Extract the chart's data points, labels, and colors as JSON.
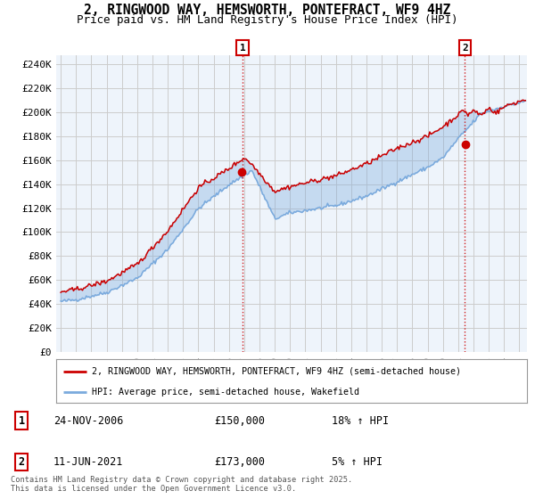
{
  "title": "2, RINGWOOD WAY, HEMSWORTH, PONTEFRACT, WF9 4HZ",
  "subtitle": "Price paid vs. HM Land Registry's House Price Index (HPI)",
  "ylabel_ticks": [
    "£0",
    "£20K",
    "£40K",
    "£60K",
    "£80K",
    "£100K",
    "£120K",
    "£140K",
    "£160K",
    "£180K",
    "£200K",
    "£220K",
    "£240K"
  ],
  "ytick_values": [
    0,
    20000,
    40000,
    60000,
    80000,
    100000,
    120000,
    140000,
    160000,
    180000,
    200000,
    220000,
    240000
  ],
  "ylim": [
    0,
    248000
  ],
  "xlim_start": 1994.7,
  "xlim_end": 2025.5,
  "vline1_x": 2006.9,
  "vline2_x": 2021.44,
  "legend_line1": "2, RINGWOOD WAY, HEMSWORTH, PONTEFRACT, WF9 4HZ (semi-detached house)",
  "legend_line2": "HPI: Average price, semi-detached house, Wakefield",
  "table_row1": [
    "1",
    "24-NOV-2006",
    "£150,000",
    "18% ↑ HPI"
  ],
  "table_row2": [
    "2",
    "11-JUN-2021",
    "£173,000",
    "5% ↑ HPI"
  ],
  "footnote": "Contains HM Land Registry data © Crown copyright and database right 2025.\nThis data is licensed under the Open Government Licence v3.0.",
  "line_color_red": "#cc0000",
  "line_color_blue": "#7aaadd",
  "fill_color_blue": "#ddeeff",
  "vline_color": "#cc0000",
  "bg_color": "#ffffff",
  "plot_bg_color": "#eef4fb",
  "grid_color": "#cccccc",
  "title_fontsize": 10.5,
  "subtitle_fontsize": 9,
  "tick_fontsize": 8,
  "marker1_price": 150000,
  "marker2_price": 173000
}
